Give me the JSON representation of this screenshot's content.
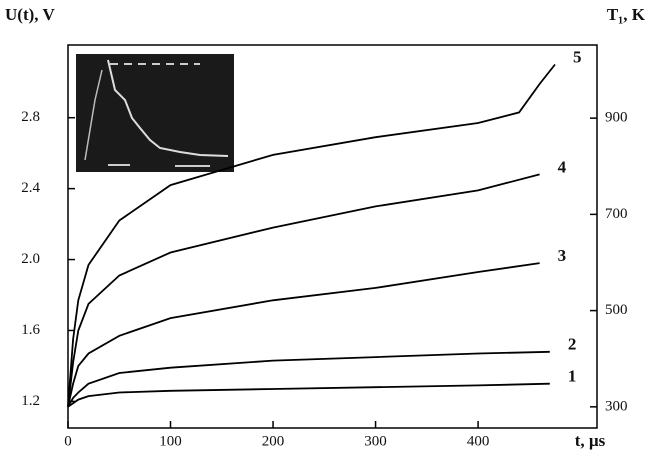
{
  "chart_data": {
    "type": "line",
    "y_label": "U(t), V",
    "y2_label": "T₁, K",
    "x_label": "t, µs",
    "xlim": [
      0,
      516
    ],
    "xticks": [
      0,
      100,
      200,
      300,
      400
    ],
    "ylim": [
      1.05,
      3.21
    ],
    "yticks": [
      {
        "value": 1.2,
        "label": "1.2"
      },
      1.6,
      {
        "value": 2,
        "label": "2.0"
      },
      2.4,
      2.8
    ],
    "y2lim": [
      256,
      1052
    ],
    "y2ticks": [
      300,
      500,
      700,
      900
    ],
    "series": [
      {
        "name": "1",
        "color": "#000000",
        "x": [
          0,
          5,
          10,
          20,
          50,
          100,
          200,
          300,
          400,
          470
        ],
        "values": [
          1.17,
          1.19,
          1.21,
          1.23,
          1.25,
          1.26,
          1.27,
          1.28,
          1.29,
          1.3
        ]
      },
      {
        "name": "2",
        "color": "#000000",
        "x": [
          0,
          5,
          10,
          20,
          50,
          100,
          200,
          300,
          400,
          470
        ],
        "values": [
          1.17,
          1.22,
          1.25,
          1.3,
          1.36,
          1.39,
          1.43,
          1.45,
          1.47,
          1.48
        ]
      },
      {
        "name": "3",
        "color": "#000000",
        "x": [
          0,
          5,
          10,
          20,
          50,
          100,
          200,
          300,
          400,
          460
        ],
        "values": [
          1.17,
          1.3,
          1.4,
          1.47,
          1.57,
          1.67,
          1.77,
          1.84,
          1.93,
          1.98
        ]
      },
      {
        "name": "4",
        "color": "#000000",
        "x": [
          0,
          5,
          10,
          20,
          50,
          100,
          200,
          300,
          400,
          460
        ],
        "values": [
          1.17,
          1.42,
          1.6,
          1.75,
          1.91,
          2.04,
          2.18,
          2.3,
          2.39,
          2.48
        ]
      },
      {
        "name": "5",
        "color": "#000000",
        "x": [
          0,
          5,
          10,
          20,
          50,
          100,
          200,
          300,
          400,
          440,
          460,
          475
        ],
        "values": [
          1.17,
          1.55,
          1.77,
          1.97,
          2.22,
          2.42,
          2.59,
          2.69,
          2.77,
          2.83,
          2.99,
          3.1
        ]
      }
    ]
  }
}
